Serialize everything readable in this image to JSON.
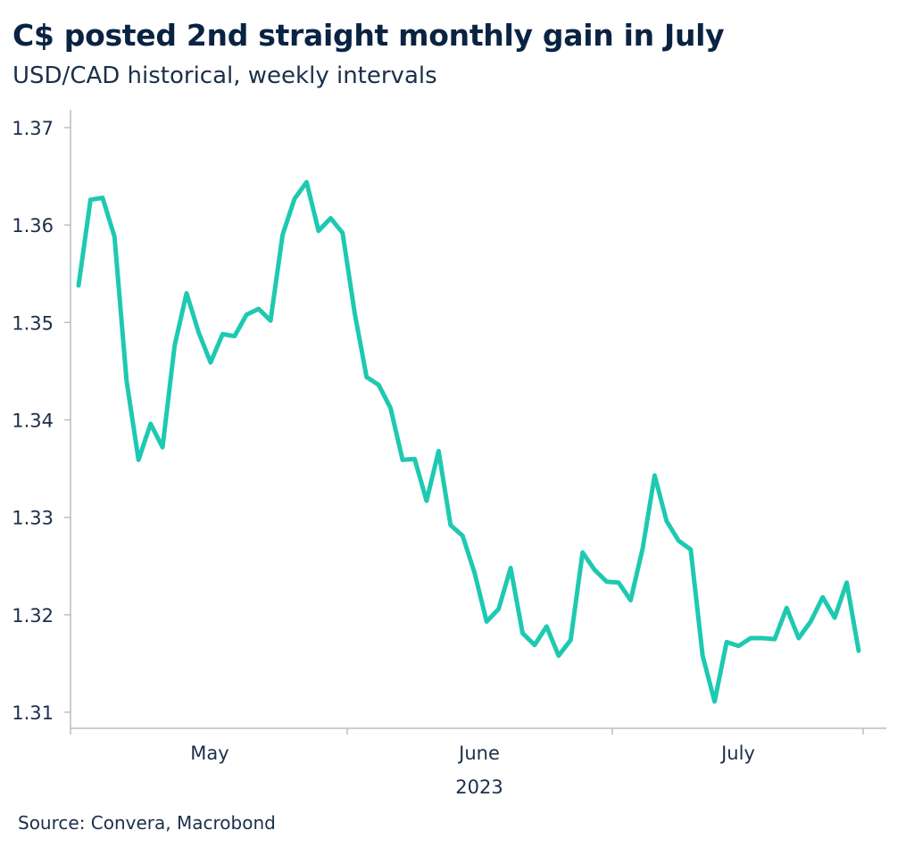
{
  "title": "C$ posted 2nd straight monthly gain in July",
  "subtitle": "USD/CAD historical, weekly intervals",
  "source": "Source: Convera, Macrobond",
  "colors": {
    "line": "#1ec9b1",
    "axis": "#b8bec6",
    "text": "#1c2f4a"
  },
  "chart_data": {
    "type": "line",
    "title": "C$ posted 2nd straight monthly gain in July",
    "subtitle": "USD/CAD historical, weekly intervals",
    "xlabel": "2023",
    "ylabel": "",
    "ylim": [
      1.31,
      1.37
    ],
    "yticks": [
      1.31,
      1.32,
      1.33,
      1.34,
      1.35,
      1.36,
      1.37
    ],
    "ytick_labels": [
      "1.31",
      "1.32",
      "1.33",
      "1.34",
      "1.35",
      "1.36",
      "1.37"
    ],
    "xtick_labels": [
      "May",
      "June",
      "July"
    ],
    "xtick_year": "2023",
    "grid": false,
    "legend": "none",
    "series": [
      {
        "values": [
          1.3538,
          1.3626,
          1.3628,
          1.3588,
          1.344,
          1.3359,
          1.3396,
          1.3372,
          1.3476,
          1.353,
          1.349,
          1.3459,
          1.3488,
          1.3486,
          1.3508,
          1.3514,
          1.3502,
          1.359,
          1.3627,
          1.3644,
          1.3594,
          1.3607,
          1.3592,
          1.351,
          1.3444,
          1.3436,
          1.3412,
          1.3359,
          1.336,
          1.3317,
          1.3368,
          1.3292,
          1.3281,
          1.3243,
          1.3193,
          1.3206,
          1.3248,
          1.3181,
          1.3169,
          1.3188,
          1.3158,
          1.3174,
          1.3264,
          1.3246,
          1.3234,
          1.3233,
          1.3215,
          1.3268,
          1.3343,
          1.3296,
          1.3276,
          1.3267,
          1.3158,
          1.3111,
          1.3172,
          1.3168,
          1.3176,
          1.3176,
          1.3175,
          1.3207,
          1.3176,
          1.3193,
          1.3218,
          1.3197,
          1.3233,
          1.3163
        ]
      }
    ]
  }
}
